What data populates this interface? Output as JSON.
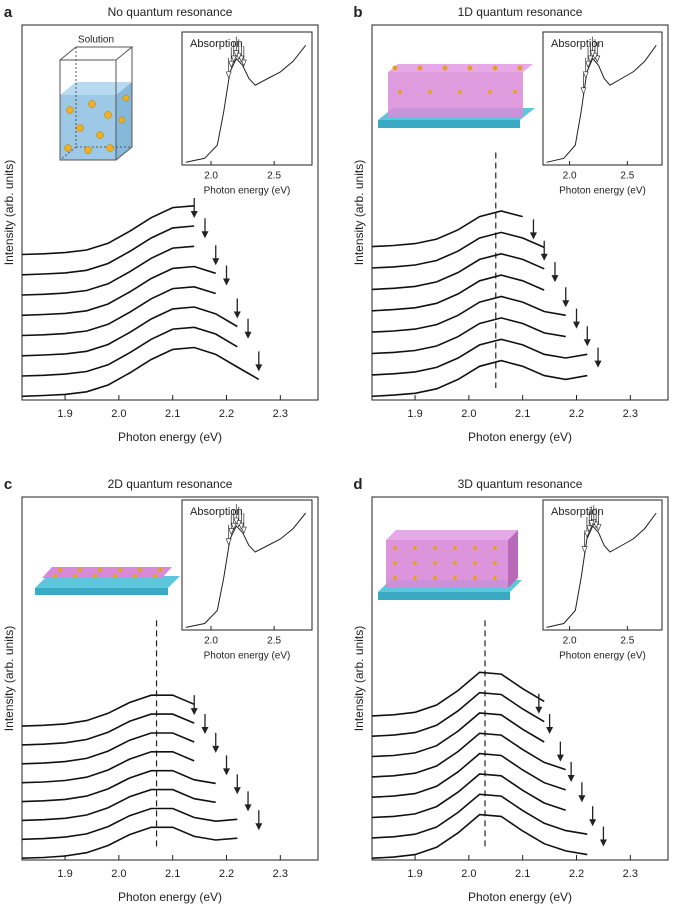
{
  "chart_data": [
    {
      "type": "line",
      "panel": "a",
      "title": "No quantum resonance",
      "illustration_label": "Solution",
      "xlabel": "Photon energy (eV)",
      "ylabel": "Intensity (arb. units)",
      "color": "#111111",
      "xlim": [
        1.82,
        2.37
      ],
      "xticks": [
        1.9,
        {
          "value": 2,
          "label": "2.0"
        },
        2.1,
        2.2,
        2.3
      ],
      "ylim": [
        0,
        10
      ],
      "x": [
        1.82,
        1.86,
        1.9,
        1.94,
        1.98,
        2.02,
        2.06,
        2.1,
        2.14,
        2.18,
        2.22,
        2.26
      ],
      "series": [
        {
          "values": [
            0.1,
            0.12,
            0.15,
            0.22,
            0.4,
            0.72,
            1.08,
            1.35,
            1.4,
            1.22,
            0.88,
            0.55
          ]
        },
        {
          "values": [
            0.64,
            0.66,
            0.69,
            0.76,
            0.94,
            1.26,
            1.62,
            1.89,
            1.94,
            1.76,
            1.42,
            null
          ]
        },
        {
          "values": [
            1.18,
            1.2,
            1.23,
            1.3,
            1.48,
            1.8,
            2.16,
            2.43,
            2.48,
            2.3,
            1.96,
            null
          ]
        },
        {
          "values": [
            1.72,
            1.74,
            1.77,
            1.84,
            2.02,
            2.34,
            2.7,
            2.97,
            3.02,
            2.84,
            null,
            null
          ]
        },
        {
          "values": [
            2.26,
            2.28,
            2.31,
            2.38,
            2.56,
            2.88,
            3.24,
            3.51,
            3.56,
            3.38,
            null,
            null
          ]
        },
        {
          "values": [
            2.8,
            2.82,
            2.85,
            2.92,
            3.1,
            3.42,
            3.78,
            4.05,
            4.1,
            null,
            null,
            null
          ]
        },
        {
          "values": [
            3.34,
            3.36,
            3.39,
            3.46,
            3.64,
            3.96,
            4.32,
            4.59,
            4.64,
            null,
            null,
            null
          ]
        },
        {
          "values": [
            3.88,
            3.9,
            3.93,
            4.0,
            4.18,
            4.5,
            4.86,
            5.13,
            5.18,
            null,
            null,
            null
          ]
        }
      ],
      "arrows_x": [
        2.26,
        2.24,
        2.22,
        2.2,
        2.18,
        2.16,
        2.14
      ],
      "inset": {
        "title": "Absorption",
        "xlabel": "Photon energy (eV)",
        "xlim": [
          1.77,
          2.8
        ],
        "xticks": [
          {
            "value": 2,
            "label": "2.0"
          },
          2.5
        ],
        "ylim": [
          0,
          10
        ],
        "x": [
          1.8,
          1.95,
          2.05,
          2.1,
          2.15,
          2.2,
          2.25,
          2.3,
          2.35,
          2.45,
          2.55,
          2.65,
          2.75
        ],
        "values": [
          0.2,
          0.5,
          1.5,
          4,
          7,
          8,
          7.5,
          6.5,
          6,
          6.5,
          7,
          7.8,
          9
        ]
      }
    },
    {
      "type": "line",
      "panel": "b",
      "title": "1D quantum resonance",
      "xlabel": "Photon energy (eV)",
      "ylabel": "Intensity (arb. units)",
      "color": "#111111",
      "xlim": [
        1.82,
        2.37
      ],
      "xticks": [
        1.9,
        {
          "value": 2,
          "label": "2.0"
        },
        2.1,
        2.2,
        2.3
      ],
      "ylim": [
        0,
        10
      ],
      "x": [
        1.82,
        1.86,
        1.9,
        1.94,
        1.98,
        2.02,
        2.06,
        2.1,
        2.14,
        2.18,
        2.22,
        2.26
      ],
      "series": [
        {
          "values": [
            0.1,
            0.13,
            0.18,
            0.3,
            0.55,
            0.9,
            1.05,
            0.9,
            0.65,
            0.55,
            0.65,
            null
          ]
        },
        {
          "values": [
            0.67,
            0.7,
            0.75,
            0.87,
            1.12,
            1.47,
            1.62,
            1.47,
            1.22,
            1.12,
            1.22,
            null
          ]
        },
        {
          "values": [
            1.24,
            1.27,
            1.32,
            1.44,
            1.69,
            2.04,
            2.19,
            2.04,
            1.79,
            1.69,
            null,
            null
          ]
        },
        {
          "values": [
            1.81,
            1.84,
            1.89,
            2.01,
            2.26,
            2.61,
            2.76,
            2.61,
            2.36,
            2.26,
            null,
            null
          ]
        },
        {
          "values": [
            2.38,
            2.41,
            2.46,
            2.58,
            2.83,
            3.18,
            3.33,
            3.18,
            2.93,
            null,
            null,
            null
          ]
        },
        {
          "values": [
            2.95,
            2.98,
            3.03,
            3.15,
            3.4,
            3.75,
            3.9,
            3.75,
            3.5,
            null,
            null,
            null
          ]
        },
        {
          "values": [
            3.52,
            3.55,
            3.6,
            3.72,
            3.97,
            4.32,
            4.47,
            4.32,
            4.07,
            null,
            null,
            null
          ]
        },
        {
          "values": [
            4.09,
            4.12,
            4.17,
            4.29,
            4.54,
            4.89,
            5.04,
            4.89,
            null,
            null,
            null,
            null
          ]
        }
      ],
      "arrows_x": [
        2.24,
        2.22,
        2.2,
        2.18,
        2.16,
        2.14,
        2.12
      ],
      "dashed_x": 2.05,
      "inset": {
        "title": "Absorption",
        "xlabel": "Photon energy (eV)",
        "xlim": [
          1.77,
          2.8
        ],
        "xticks": [
          {
            "value": 2,
            "label": "2.0"
          },
          2.5
        ],
        "ylim": [
          0,
          10
        ],
        "x": [
          1.8,
          1.95,
          2.05,
          2.1,
          2.15,
          2.2,
          2.25,
          2.3,
          2.35,
          2.45,
          2.55,
          2.65,
          2.75
        ],
        "values": [
          0.2,
          0.5,
          1.5,
          4,
          7,
          8,
          7.5,
          6.5,
          6,
          6.5,
          7,
          7.8,
          9
        ]
      }
    },
    {
      "type": "line",
      "panel": "c",
      "title": "2D quantum resonance",
      "xlabel": "Photon energy (eV)",
      "ylabel": "Intensity (arb. units)",
      "color": "#111111",
      "xlim": [
        1.82,
        2.37
      ],
      "xticks": [
        1.9,
        {
          "value": 2,
          "label": "2.0"
        },
        2.1,
        2.2,
        2.3
      ],
      "ylim": [
        0,
        10
      ],
      "x": [
        1.82,
        1.86,
        1.9,
        1.94,
        1.98,
        2.02,
        2.06,
        2.1,
        2.14,
        2.18,
        2.22,
        2.26
      ],
      "series": [
        {
          "values": [
            0.05,
            0.07,
            0.11,
            0.2,
            0.4,
            0.7,
            0.9,
            0.9,
            0.65,
            0.55,
            0.6,
            null
          ]
        },
        {
          "values": [
            0.57,
            0.59,
            0.63,
            0.72,
            0.92,
            1.22,
            1.42,
            1.42,
            1.17,
            1.07,
            1.12,
            null
          ]
        },
        {
          "values": [
            1.09,
            1.11,
            1.15,
            1.24,
            1.44,
            1.74,
            1.94,
            1.94,
            1.69,
            1.59,
            null,
            null
          ]
        },
        {
          "values": [
            1.61,
            1.63,
            1.67,
            1.76,
            1.96,
            2.26,
            2.46,
            2.46,
            2.21,
            2.11,
            null,
            null
          ]
        },
        {
          "values": [
            2.13,
            2.15,
            2.19,
            2.28,
            2.48,
            2.78,
            2.98,
            2.98,
            2.73,
            null,
            null,
            null
          ]
        },
        {
          "values": [
            2.65,
            2.67,
            2.71,
            2.8,
            3.0,
            3.3,
            3.5,
            3.5,
            3.25,
            null,
            null,
            null
          ]
        },
        {
          "values": [
            3.17,
            3.19,
            3.23,
            3.32,
            3.52,
            3.82,
            4.02,
            4.02,
            3.77,
            null,
            null,
            null
          ]
        },
        {
          "values": [
            3.69,
            3.71,
            3.75,
            3.84,
            4.04,
            4.34,
            4.54,
            4.54,
            4.29,
            null,
            null,
            null
          ]
        }
      ],
      "arrows_x": [
        2.26,
        2.24,
        2.22,
        2.2,
        2.18,
        2.16,
        2.14
      ],
      "dashed_x": 2.07,
      "inset": {
        "title": "Absorption",
        "xlabel": "Photon energy (eV)",
        "xlim": [
          1.77,
          2.8
        ],
        "xticks": [
          {
            "value": 2,
            "label": "2.0"
          },
          2.5
        ],
        "ylim": [
          0,
          10
        ],
        "x": [
          1.8,
          1.95,
          2.05,
          2.1,
          2.15,
          2.2,
          2.25,
          2.3,
          2.35,
          2.45,
          2.55,
          2.65,
          2.75
        ],
        "values": [
          0.2,
          0.5,
          1.5,
          4,
          7,
          8,
          7.5,
          6.5,
          6,
          6.5,
          7,
          7.8,
          9
        ]
      }
    },
    {
      "type": "line",
      "panel": "d",
      "title": "3D quantum resonance",
      "xlabel": "Photon energy (eV)",
      "ylabel": "Intensity (arb. units)",
      "color": "#111111",
      "xlim": [
        1.82,
        2.37
      ],
      "xticks": [
        1.9,
        {
          "value": 2,
          "label": "2.0"
        },
        2.1,
        2.2,
        2.3
      ],
      "ylim": [
        0,
        10
      ],
      "x": [
        1.82,
        1.86,
        1.9,
        1.94,
        1.98,
        2.02,
        2.06,
        2.1,
        2.14,
        2.18,
        2.22,
        2.26
      ],
      "series": [
        {
          "values": [
            0.05,
            0.08,
            0.15,
            0.35,
            0.75,
            1.25,
            1.2,
            0.8,
            0.45,
            0.25,
            0.15,
            null
          ]
        },
        {
          "values": [
            0.61,
            0.64,
            0.71,
            0.91,
            1.31,
            1.81,
            1.76,
            1.36,
            1.01,
            0.81,
            0.71,
            null
          ]
        },
        {
          "values": [
            1.17,
            1.2,
            1.27,
            1.47,
            1.87,
            2.37,
            2.32,
            1.92,
            1.57,
            1.37,
            null,
            null
          ]
        },
        {
          "values": [
            1.73,
            1.76,
            1.83,
            2.03,
            2.43,
            2.93,
            2.88,
            2.48,
            2.13,
            1.93,
            null,
            null
          ]
        },
        {
          "values": [
            2.29,
            2.32,
            2.39,
            2.59,
            2.99,
            3.49,
            3.44,
            3.04,
            2.69,
            2.49,
            null,
            null
          ]
        },
        {
          "values": [
            2.85,
            2.88,
            2.95,
            3.15,
            3.55,
            4.05,
            4.0,
            3.6,
            3.25,
            null,
            null,
            null
          ]
        },
        {
          "values": [
            3.41,
            3.44,
            3.51,
            3.71,
            4.11,
            4.61,
            4.56,
            4.16,
            3.81,
            null,
            null,
            null
          ]
        },
        {
          "values": [
            3.97,
            4.0,
            4.07,
            4.27,
            4.67,
            5.17,
            5.12,
            4.72,
            4.37,
            null,
            null,
            null
          ]
        }
      ],
      "arrows_x": [
        2.25,
        2.23,
        2.21,
        2.19,
        2.17,
        2.15,
        2.13
      ],
      "dashed_x": 2.03,
      "inset": {
        "title": "Absorption",
        "xlabel": "Photon energy (eV)",
        "xlim": [
          1.77,
          2.8
        ],
        "xticks": [
          {
            "value": 2,
            "label": "2.0"
          },
          2.5
        ],
        "ylim": [
          0,
          10
        ],
        "x": [
          1.8,
          1.95,
          2.05,
          2.1,
          2.15,
          2.2,
          2.25,
          2.3,
          2.35,
          2.45,
          2.55,
          2.65,
          2.75
        ],
        "values": [
          0.2,
          0.5,
          1.5,
          4,
          7,
          8,
          7.5,
          6.5,
          6,
          6.5,
          7,
          7.8,
          9
        ]
      }
    }
  ]
}
